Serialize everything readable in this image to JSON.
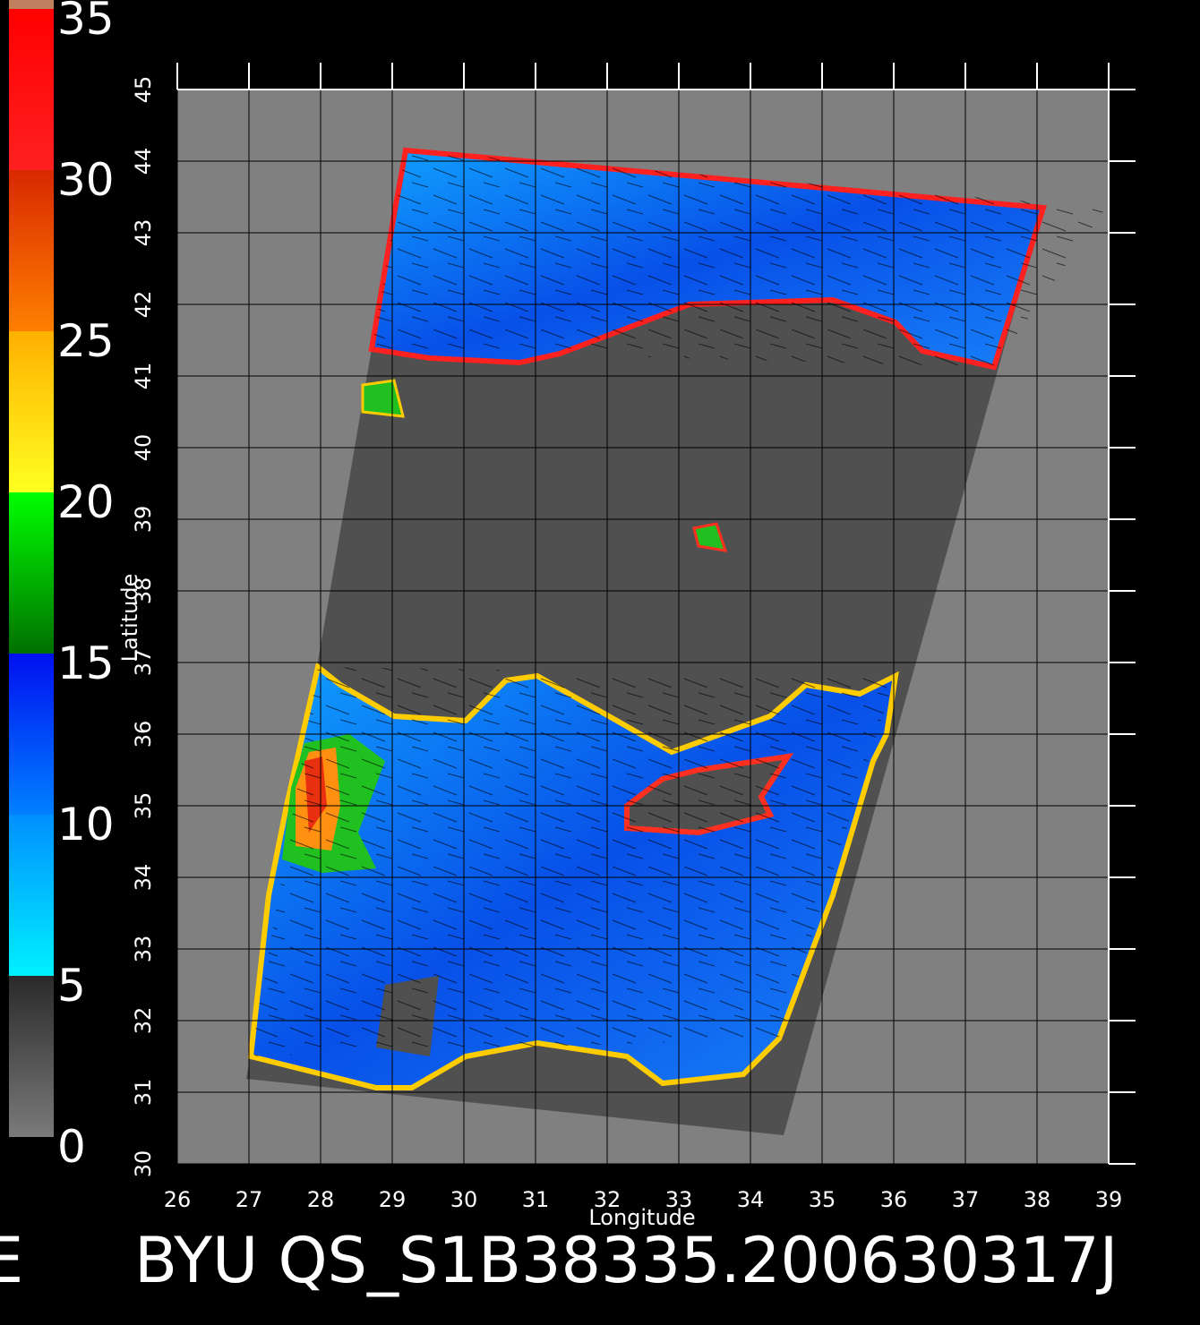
{
  "chart_data": {
    "type": "map",
    "title_prefix": "E",
    "title": "BYU QS_S1B38335.200630317J",
    "x_label": "Longitude",
    "y_label": "Latitude",
    "xlim": [
      26,
      39
    ],
    "ylim": [
      30,
      45
    ],
    "xticks": [
      26,
      27,
      28,
      29,
      30,
      31,
      32,
      33,
      34,
      35,
      36,
      37,
      38,
      39
    ],
    "yticks": [
      30,
      31,
      32,
      33,
      34,
      35,
      36,
      37,
      38,
      39,
      40,
      41,
      42,
      43,
      44,
      45
    ],
    "grid": true,
    "colorbar": {
      "lim": [
        0,
        35
      ],
      "ticks": [
        0,
        5,
        10,
        15,
        20,
        25,
        30,
        35
      ]
    }
  }
}
